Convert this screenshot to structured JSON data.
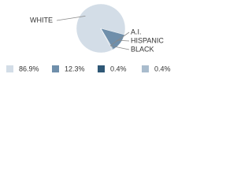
{
  "chart_data": {
    "type": "pie",
    "categories": [
      "WHITE",
      "HISPANIC",
      "A.I.",
      "BLACK"
    ],
    "values": [
      86.9,
      12.3,
      0.4,
      0.4
    ],
    "value_labels": [
      "86.9%",
      "12.3%",
      "0.4%",
      "0.4%"
    ],
    "colors": [
      "#d3dde7",
      "#6f8fab",
      "#2f5876",
      "#a9bccd"
    ]
  }
}
